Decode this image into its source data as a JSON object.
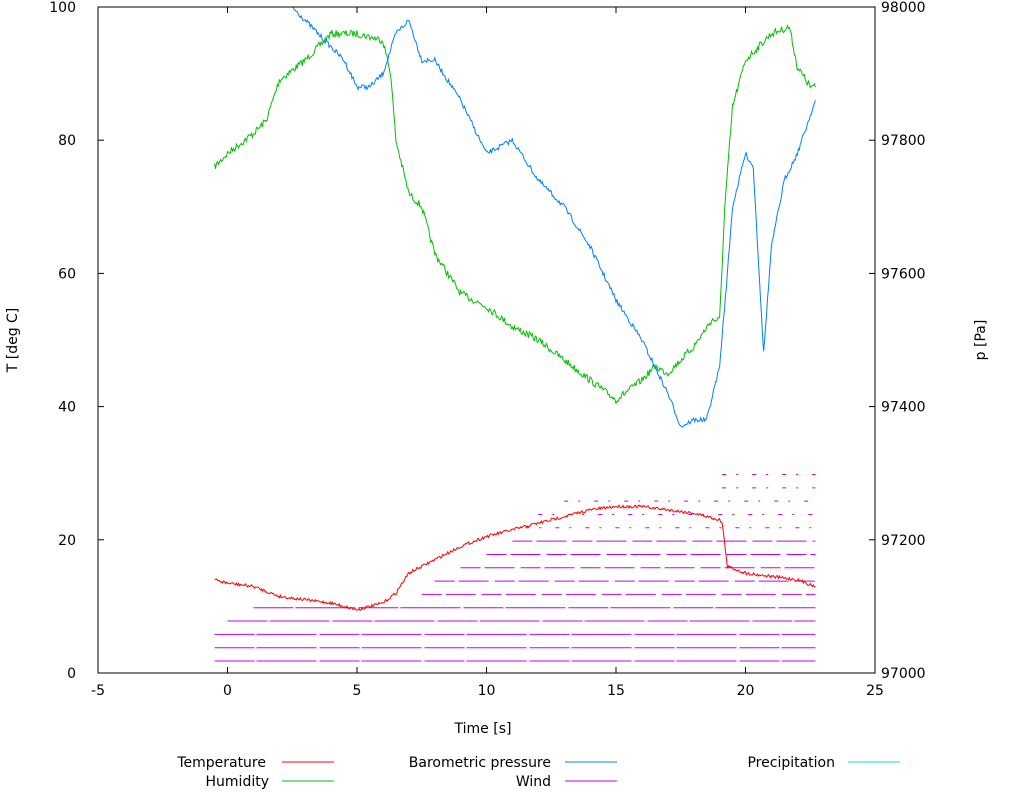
{
  "chart_data": {
    "type": "line",
    "title": "",
    "xlabel": "Time [s]",
    "ylabel": "T [deg C]",
    "y2label": "p [Pa]",
    "xlim": [
      -5,
      25
    ],
    "ylim": [
      0,
      100
    ],
    "y2lim": [
      97000,
      98000
    ],
    "xticks": [
      "-5",
      "0",
      "5",
      "10",
      "15",
      "20",
      "25"
    ],
    "yticks": [
      "0",
      "20",
      "40",
      "60",
      "80",
      "100"
    ],
    "y2ticks": [
      "97000",
      "97200",
      "97400",
      "97600",
      "97800",
      "98000"
    ],
    "grid": false,
    "legend_position": "bottom",
    "series": [
      {
        "name": "Temperature",
        "color": "#ff0000",
        "axis": "y",
        "x": [
          -0.5,
          0,
          1,
          2,
          3,
          4,
          5,
          6,
          6.5,
          7,
          8,
          9,
          10,
          11,
          12,
          13,
          14,
          15,
          16,
          17,
          18,
          19,
          19.1,
          19.3,
          20,
          21,
          22,
          22.7
        ],
        "y": [
          14,
          13.5,
          13,
          11.5,
          11,
          10.5,
          9.5,
          10.5,
          12,
          15,
          17,
          19,
          20.5,
          21.5,
          22.5,
          23.5,
          24.5,
          25,
          25,
          24.5,
          24,
          23,
          22.5,
          16,
          15,
          14.5,
          14,
          13
        ]
      },
      {
        "name": "Humidity",
        "color": "#00c000",
        "axis": "y",
        "x": [
          -0.5,
          0,
          1,
          1.5,
          2,
          3,
          4,
          5,
          6,
          6.3,
          6.5,
          7,
          7.5,
          8,
          9,
          10,
          11,
          12,
          13,
          14,
          15,
          16,
          16.5,
          17,
          18,
          18.7,
          19,
          19.2,
          19.5,
          20,
          21,
          21.7,
          22,
          22.5,
          22.7
        ],
        "y": [
          76,
          78,
          81,
          83,
          89,
          92,
          96,
          96,
          95,
          90,
          80,
          72,
          70,
          63,
          57,
          55,
          52,
          50,
          47,
          44,
          41,
          44,
          46,
          45,
          49,
          53,
          53,
          70,
          85,
          92,
          96,
          97,
          91,
          88,
          88
        ]
      },
      {
        "name": "Barometric pressure",
        "color": "#0080ff",
        "axis": "y2",
        "x": [
          2.5,
          3.5,
          4,
          4.5,
          5,
          5.5,
          6,
          6.5,
          7,
          7.5,
          8,
          9,
          10,
          11,
          12,
          13,
          14,
          15,
          16,
          16.5,
          17,
          17.5,
          18,
          18.5,
          19,
          19.3,
          19.5,
          20,
          20.3,
          20.7,
          21,
          21.5,
          22,
          22.7
        ],
        "y": [
          98000,
          97960,
          97940,
          97920,
          97880,
          97880,
          97900,
          97960,
          97980,
          97920,
          97920,
          97860,
          97780,
          97800,
          97740,
          97700,
          97640,
          97560,
          97500,
          97460,
          97420,
          97370,
          97380,
          97380,
          97460,
          97600,
          97700,
          97780,
          97760,
          97480,
          97640,
          97740,
          97780,
          97860
        ]
      },
      {
        "name": "Wind",
        "color": "#c000ff",
        "axis": "y",
        "levels": [
          1.8,
          3.8,
          5.8,
          7.8,
          9.8,
          11.8,
          13.8,
          15.8,
          17.8,
          19.8,
          21.8,
          23.8,
          25.8,
          27.8,
          29.8
        ],
        "from": [
          -0.5,
          -0.5,
          -0.5,
          0,
          1,
          7.5,
          8,
          9,
          10,
          11,
          11.5,
          12,
          13,
          19.1,
          19.1
        ],
        "to": [
          22.7,
          22.7,
          22.7,
          22.7,
          22.7,
          22.7,
          22.7,
          22.7,
          22.7,
          22.7,
          22.7,
          22.7,
          22.7,
          22.7,
          22.7
        ]
      },
      {
        "name": "Precipitation",
        "color": "#00e0e0",
        "axis": "y",
        "x": [],
        "y": []
      }
    ]
  }
}
